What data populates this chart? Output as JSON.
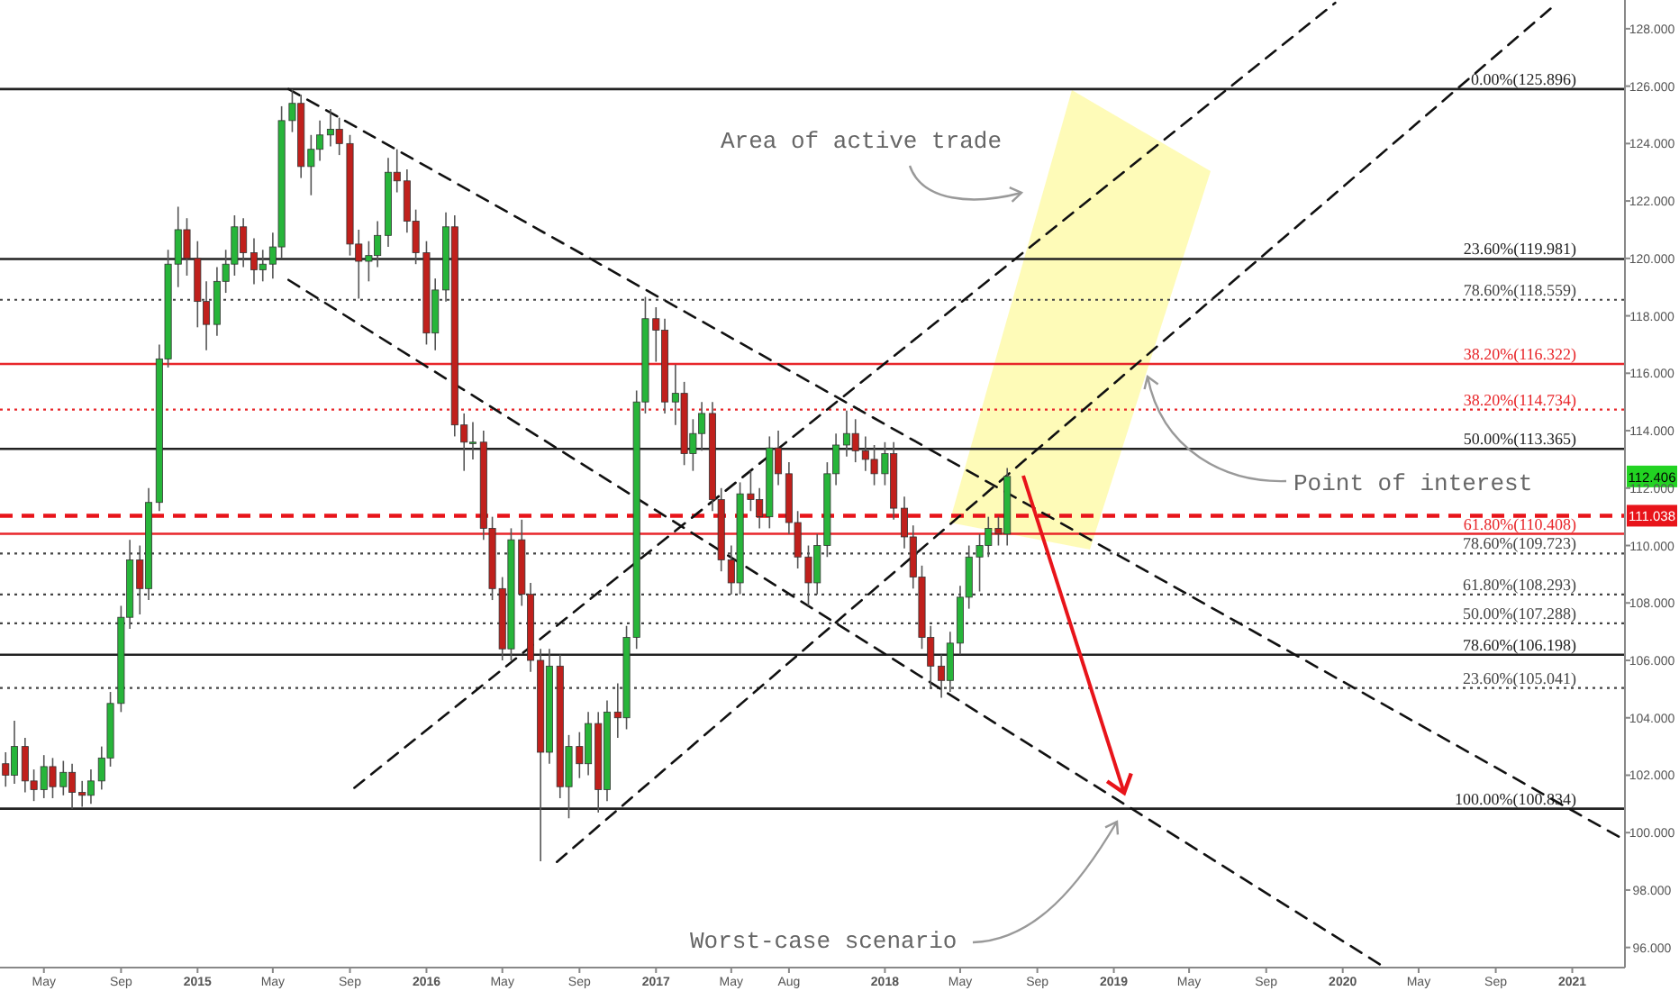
{
  "chart_data": {
    "type": "candlestick",
    "x": [
      "2014-03-01",
      "2014-03-15",
      "2014-04-01",
      "2014-04-15",
      "2014-05-01",
      "2014-05-15",
      "2014-06-01",
      "2014-06-15",
      "2014-07-01",
      "2014-07-15",
      "2014-08-01",
      "2014-08-15",
      "2014-09-01",
      "2014-09-15",
      "2014-10-01",
      "2014-10-15",
      "2014-11-01",
      "2014-11-15",
      "2014-12-01",
      "2014-12-15",
      "2015-01-01",
      "2015-01-15",
      "2015-02-01",
      "2015-02-15",
      "2015-03-01",
      "2015-03-15",
      "2015-04-01",
      "2015-04-15",
      "2015-05-01",
      "2015-05-15",
      "2015-06-01",
      "2015-06-15",
      "2015-07-01",
      "2015-07-15",
      "2015-08-01",
      "2015-08-15",
      "2015-09-01",
      "2015-09-15",
      "2015-10-01",
      "2015-10-15",
      "2015-11-01",
      "2015-11-15",
      "2015-12-01",
      "2015-12-15",
      "2016-01-01",
      "2016-01-15",
      "2016-02-01",
      "2016-02-15",
      "2016-03-01",
      "2016-03-15",
      "2016-04-01",
      "2016-04-15",
      "2016-05-01",
      "2016-05-15",
      "2016-06-01",
      "2016-06-15",
      "2016-07-01",
      "2016-07-15",
      "2016-08-01",
      "2016-08-15",
      "2016-09-01",
      "2016-09-15",
      "2016-10-01",
      "2016-10-15",
      "2016-11-01",
      "2016-11-15",
      "2016-12-01",
      "2016-12-15",
      "2017-01-01",
      "2017-01-15",
      "2017-02-01",
      "2017-02-15",
      "2017-03-01",
      "2017-03-15",
      "2017-04-01",
      "2017-04-15",
      "2017-05-01",
      "2017-05-15",
      "2017-06-01",
      "2017-06-15",
      "2017-07-01",
      "2017-07-15",
      "2017-08-01",
      "2017-08-15",
      "2017-09-01",
      "2017-09-15",
      "2017-10-01",
      "2017-10-15",
      "2017-11-01",
      "2017-11-15",
      "2017-12-01",
      "2017-12-15",
      "2018-01-01",
      "2018-01-15",
      "2018-02-01",
      "2018-02-15",
      "2018-03-01",
      "2018-03-15",
      "2018-04-01",
      "2018-04-15",
      "2018-05-01",
      "2018-05-15",
      "2018-06-01",
      "2018-06-15",
      "2018-07-01",
      "2018-07-15"
    ],
    "ohlc": [
      [
        102.4,
        102.8,
        101.6,
        102.0
      ],
      [
        102.0,
        103.9,
        101.7,
        103.0
      ],
      [
        103.0,
        103.3,
        101.4,
        101.8
      ],
      [
        101.8,
        102.2,
        101.1,
        101.5
      ],
      [
        101.5,
        102.7,
        101.2,
        102.3
      ],
      [
        102.3,
        102.6,
        101.2,
        101.6
      ],
      [
        101.6,
        102.5,
        101.3,
        102.1
      ],
      [
        102.1,
        102.4,
        100.83,
        101.4
      ],
      [
        101.4,
        101.8,
        100.9,
        101.3
      ],
      [
        101.3,
        102.2,
        101.0,
        101.8
      ],
      [
        101.8,
        103.0,
        101.5,
        102.6
      ],
      [
        102.6,
        104.9,
        102.3,
        104.5
      ],
      [
        104.5,
        107.9,
        104.2,
        107.5
      ],
      [
        107.5,
        110.2,
        107.1,
        109.5
      ],
      [
        109.5,
        110.0,
        107.6,
        108.5
      ],
      [
        108.5,
        112.0,
        108.1,
        111.5
      ],
      [
        111.5,
        117.0,
        111.2,
        116.5
      ],
      [
        116.5,
        120.3,
        116.2,
        119.8
      ],
      [
        119.8,
        121.8,
        119.0,
        121.0
      ],
      [
        121.0,
        121.4,
        119.4,
        120.0
      ],
      [
        120.0,
        120.6,
        117.6,
        118.5
      ],
      [
        118.5,
        119.2,
        116.8,
        117.7
      ],
      [
        117.7,
        119.7,
        117.3,
        119.2
      ],
      [
        119.2,
        120.3,
        118.8,
        119.8
      ],
      [
        119.8,
        121.5,
        119.4,
        121.1
      ],
      [
        121.1,
        121.4,
        119.7,
        120.2
      ],
      [
        120.2,
        120.7,
        119.1,
        119.6
      ],
      [
        119.6,
        120.3,
        119.2,
        119.8
      ],
      [
        119.8,
        120.9,
        119.3,
        120.4
      ],
      [
        120.4,
        125.3,
        120.0,
        124.8
      ],
      [
        124.8,
        125.896,
        124.4,
        125.4
      ],
      [
        125.4,
        125.7,
        122.8,
        123.2
      ],
      [
        123.2,
        124.3,
        122.2,
        123.8
      ],
      [
        123.8,
        124.8,
        123.4,
        124.3
      ],
      [
        124.3,
        125.2,
        123.9,
        124.5
      ],
      [
        124.5,
        124.9,
        123.6,
        124.0
      ],
      [
        124.0,
        124.3,
        120.1,
        120.5
      ],
      [
        120.5,
        121.0,
        118.6,
        119.9
      ],
      [
        119.9,
        120.6,
        119.2,
        120.1
      ],
      [
        120.1,
        121.3,
        119.7,
        120.8
      ],
      [
        120.8,
        123.5,
        120.4,
        123.0
      ],
      [
        123.0,
        123.8,
        122.3,
        122.7
      ],
      [
        122.7,
        123.1,
        120.9,
        121.3
      ],
      [
        121.3,
        121.7,
        119.8,
        120.2
      ],
      [
        120.2,
        120.6,
        117.0,
        117.4
      ],
      [
        117.4,
        119.3,
        116.8,
        118.9
      ],
      [
        118.9,
        121.6,
        118.5,
        121.1
      ],
      [
        121.1,
        121.5,
        113.8,
        114.2
      ],
      [
        114.2,
        114.6,
        112.6,
        113.6
      ],
      [
        113.6,
        114.3,
        113.0,
        113.6
      ],
      [
        113.6,
        114.0,
        110.2,
        110.6
      ],
      [
        110.6,
        111.0,
        108.1,
        108.5
      ],
      [
        108.5,
        108.9,
        106.0,
        106.4
      ],
      [
        106.4,
        110.6,
        106.0,
        110.2
      ],
      [
        110.2,
        110.9,
        107.9,
        108.3
      ],
      [
        108.3,
        108.7,
        105.6,
        106.0
      ],
      [
        106.0,
        106.4,
        99.0,
        102.8
      ],
      [
        102.8,
        106.4,
        102.4,
        105.8
      ],
      [
        105.8,
        106.2,
        101.2,
        101.6
      ],
      [
        101.6,
        103.4,
        100.5,
        103.0
      ],
      [
        103.0,
        103.5,
        101.9,
        102.4
      ],
      [
        102.4,
        104.2,
        102.0,
        103.8
      ],
      [
        103.8,
        104.2,
        100.7,
        101.5
      ],
      [
        101.5,
        104.6,
        101.1,
        104.2
      ],
      [
        104.2,
        105.2,
        103.3,
        104.0
      ],
      [
        104.0,
        107.2,
        103.6,
        106.8
      ],
      [
        106.8,
        115.4,
        106.4,
        115.0
      ],
      [
        115.0,
        118.66,
        114.6,
        117.9
      ],
      [
        117.9,
        118.3,
        116.4,
        117.5
      ],
      [
        117.5,
        117.9,
        114.6,
        115.0
      ],
      [
        115.0,
        116.3,
        114.2,
        115.3
      ],
      [
        115.3,
        115.7,
        112.8,
        113.2
      ],
      [
        113.2,
        114.4,
        112.6,
        113.9
      ],
      [
        113.9,
        115.0,
        113.3,
        114.6
      ],
      [
        114.6,
        115.0,
        111.2,
        111.6
      ],
      [
        111.6,
        112.0,
        109.1,
        109.5
      ],
      [
        109.5,
        110.0,
        108.3,
        108.7
      ],
      [
        108.7,
        112.2,
        108.3,
        111.8
      ],
      [
        111.8,
        112.6,
        111.2,
        111.6
      ],
      [
        111.6,
        112.0,
        110.6,
        111.0
      ],
      [
        111.0,
        113.8,
        110.6,
        113.4
      ],
      [
        113.4,
        114.0,
        112.1,
        112.5
      ],
      [
        112.5,
        112.9,
        110.4,
        110.8
      ],
      [
        110.8,
        111.2,
        109.2,
        109.6
      ],
      [
        109.6,
        110.0,
        107.9,
        108.7
      ],
      [
        108.7,
        110.4,
        108.3,
        110.0
      ],
      [
        110.0,
        112.9,
        109.6,
        112.5
      ],
      [
        112.5,
        113.9,
        112.1,
        113.5
      ],
      [
        113.5,
        114.7,
        113.1,
        113.9
      ],
      [
        113.9,
        114.4,
        112.9,
        113.3
      ],
      [
        113.3,
        113.8,
        112.6,
        113.0
      ],
      [
        113.0,
        113.5,
        112.1,
        112.5
      ],
      [
        112.5,
        113.6,
        112.1,
        113.2
      ],
      [
        113.2,
        113.6,
        110.9,
        111.3
      ],
      [
        111.3,
        111.7,
        109.9,
        110.3
      ],
      [
        110.3,
        110.7,
        108.5,
        108.9
      ],
      [
        108.9,
        109.3,
        106.4,
        106.8
      ],
      [
        106.8,
        107.2,
        105.0,
        105.8
      ],
      [
        105.8,
        106.2,
        104.7,
        105.3
      ],
      [
        105.3,
        107.0,
        104.9,
        106.6
      ],
      [
        106.6,
        108.6,
        106.2,
        108.2
      ],
      [
        108.2,
        110.0,
        107.8,
        109.6
      ],
      [
        109.6,
        110.4,
        108.4,
        110.0
      ],
      [
        110.0,
        111.0,
        109.6,
        110.6
      ],
      [
        110.6,
        111.0,
        110.0,
        110.4
      ],
      [
        110.4,
        112.7,
        110.0,
        112.406
      ]
    ],
    "colors": [
      "#c0201c",
      "#27b53a",
      "#c0201c",
      "#c0201c",
      "#27b53a",
      "#c0201c",
      "#27b53a",
      "#c0201c",
      "#c0201c",
      "#27b53a",
      "#27b53a",
      "#27b53a",
      "#27b53a",
      "#27b53a",
      "#c0201c",
      "#27b53a",
      "#27b53a",
      "#27b53a",
      "#27b53a",
      "#c0201c",
      "#c0201c",
      "#c0201c",
      "#27b53a",
      "#27b53a",
      "#27b53a",
      "#c0201c",
      "#c0201c",
      "#27b53a",
      "#27b53a",
      "#27b53a",
      "#27b53a",
      "#c0201c",
      "#27b53a",
      "#27b53a",
      "#27b53a",
      "#c0201c",
      "#c0201c",
      "#c0201c",
      "#27b53a",
      "#27b53a",
      "#27b53a",
      "#c0201c",
      "#c0201c",
      "#c0201c",
      "#c0201c",
      "#27b53a",
      "#27b53a",
      "#c0201c",
      "#c0201c",
      "#27b53a",
      "#c0201c",
      "#c0201c",
      "#c0201c",
      "#27b53a",
      "#c0201c",
      "#c0201c",
      "#c0201c",
      "#27b53a",
      "#c0201c",
      "#27b53a",
      "#c0201c",
      "#27b53a",
      "#c0201c",
      "#27b53a",
      "#c0201c",
      "#27b53a",
      "#27b53a",
      "#27b53a",
      "#c0201c",
      "#c0201c",
      "#27b53a",
      "#c0201c",
      "#27b53a",
      "#27b53a",
      "#c0201c",
      "#c0201c",
      "#c0201c",
      "#27b53a",
      "#c0201c",
      "#c0201c",
      "#27b53a",
      "#c0201c",
      "#c0201c",
      "#c0201c",
      "#c0201c",
      "#27b53a",
      "#27b53a",
      "#27b53a",
      "#27b53a",
      "#c0201c",
      "#c0201c",
      "#c0201c",
      "#27b53a",
      "#c0201c",
      "#c0201c",
      "#c0201c",
      "#c0201c",
      "#c0201c",
      "#c0201c",
      "#27b53a",
      "#27b53a",
      "#27b53a",
      "#27b53a",
      "#27b53a",
      "#c0201c",
      "#27b53a"
    ],
    "series": [
      {
        "type": "line",
        "color": "#111111",
        "line_style": "dashed",
        "x": [
          "2015-05-26",
          "2021-03-26"
        ],
        "values": [
          125.9,
          99.74
        ]
      },
      {
        "type": "line",
        "color": "#111111",
        "line_style": "dashed",
        "x": [
          "2015-05-26",
          "2020-03-01"
        ],
        "values": [
          119.25,
          95.4
        ]
      },
      {
        "type": "line",
        "color": "#111111",
        "line_style": "dashed",
        "x": [
          "2015-09-08",
          "2019-12-20"
        ],
        "values": [
          101.56,
          128.9
        ]
      },
      {
        "type": "line",
        "color": "#111111",
        "line_style": "dashed",
        "x": [
          "2016-07-27",
          "2020-12-08"
        ],
        "values": [
          98.98,
          128.9
        ]
      }
    ],
    "xlim": [
      "2014-02-20",
      "2021-03-26"
    ],
    "xticks": [
      {
        "value": "2014-05-01",
        "label": "May"
      },
      {
        "value": "2014-09-01",
        "label": "Sep"
      },
      {
        "value": "2015-01-01",
        "label": "2015"
      },
      {
        "value": "2015-05-01",
        "label": "May"
      },
      {
        "value": "2015-09-01",
        "label": "Sep"
      },
      {
        "value": "2016-01-01",
        "label": "2016"
      },
      {
        "value": "2016-05-01",
        "label": "May"
      },
      {
        "value": "2016-09-01",
        "label": "Sep"
      },
      {
        "value": "2017-01-01",
        "label": "2017"
      },
      {
        "value": "2017-05-01",
        "label": "May"
      },
      {
        "value": "2017-08-01",
        "label": "Aug"
      },
      {
        "value": "2018-01-01",
        "label": "2018"
      },
      {
        "value": "2018-05-01",
        "label": "May"
      },
      {
        "value": "2018-09-01",
        "label": "Sep"
      },
      {
        "value": "2019-01-01",
        "label": "2019"
      },
      {
        "value": "2019-05-01",
        "label": "May"
      },
      {
        "value": "2019-09-01",
        "label": "Sep"
      },
      {
        "value": "2020-01-01",
        "label": "2020"
      },
      {
        "value": "2020-05-01",
        "label": "May"
      },
      {
        "value": "2020-09-01",
        "label": "Sep"
      },
      {
        "value": "2021-01-01",
        "label": "2021"
      }
    ],
    "ylim": [
      95.3,
      129.0
    ],
    "yticks": [
      {
        "value": 96,
        "label": "96.000"
      },
      {
        "value": 98,
        "label": "98.000"
      },
      {
        "value": 100,
        "label": "100.000"
      },
      {
        "value": 102,
        "label": "102.000"
      },
      {
        "value": 104,
        "label": "104.000"
      },
      {
        "value": 106,
        "label": "106.000"
      },
      {
        "value": 108,
        "label": "108.000"
      },
      {
        "value": 110,
        "label": "110.000"
      },
      {
        "value": 112,
        "label": "112.000"
      },
      {
        "value": 114,
        "label": "114.000"
      },
      {
        "value": 116,
        "label": "116.000"
      },
      {
        "value": 118,
        "label": "118.000"
      },
      {
        "value": 120,
        "label": "120.000"
      },
      {
        "value": 122,
        "label": "122.000"
      },
      {
        "value": 124,
        "label": "124.000"
      },
      {
        "value": 126,
        "label": "126.000"
      },
      {
        "value": 128,
        "label": "128.000"
      }
    ],
    "ref_lines": [
      {
        "axis": "y",
        "value": 125.896,
        "label": "0.00%(125.896)",
        "color": "#222222",
        "line_style": "solid"
      },
      {
        "axis": "y",
        "value": 119.981,
        "label": "23.60%(119.981)",
        "color": "#222222",
        "line_style": "solid"
      },
      {
        "axis": "y",
        "value": 118.559,
        "label": "78.60%(118.559)",
        "color": "#444444",
        "line_style": "dotted"
      },
      {
        "axis": "y",
        "value": 116.322,
        "label": "38.20%(116.322)",
        "color": "#e8262a",
        "line_style": "solid"
      },
      {
        "axis": "y",
        "value": 114.734,
        "label": "38.20%(114.734)",
        "color": "#e8262a",
        "line_style": "dotted"
      },
      {
        "axis": "y",
        "value": 113.365,
        "label": "50.00%(113.365)",
        "color": "#222222",
        "line_style": "solid"
      },
      {
        "axis": "y",
        "value": 111.038,
        "label": "111.038",
        "color": "#e8141a",
        "line_style": "dashed"
      },
      {
        "axis": "y",
        "value": 110.408,
        "label": "61.80%(110.408)",
        "color": "#e8262a",
        "line_style": "solid"
      },
      {
        "axis": "y",
        "value": 109.723,
        "label": "78.60%(109.723)",
        "color": "#444444",
        "line_style": "dotted"
      },
      {
        "axis": "y",
        "value": 108.293,
        "label": "61.80%(108.293)",
        "color": "#444444",
        "line_style": "dotted"
      },
      {
        "axis": "y",
        "value": 107.288,
        "label": "50.00%(107.288)",
        "color": "#444444",
        "line_style": "dotted"
      },
      {
        "axis": "y",
        "value": 106.198,
        "label": "78.60%(106.198)",
        "color": "#222222",
        "line_style": "solid"
      },
      {
        "axis": "y",
        "value": 105.041,
        "label": "23.60%(105.041)",
        "color": "#444444",
        "line_style": "dotted"
      },
      {
        "axis": "y",
        "value": 100.834,
        "label": "100.00%(100.834)",
        "color": "#222222",
        "line_style": "solid"
      }
    ],
    "annotations": [
      "Area of active trade",
      "Point of interest",
      "Worst-case scenario",
      {
        "text": "112.406",
        "y": 112.406
      }
    ],
    "grid": false
  }
}
